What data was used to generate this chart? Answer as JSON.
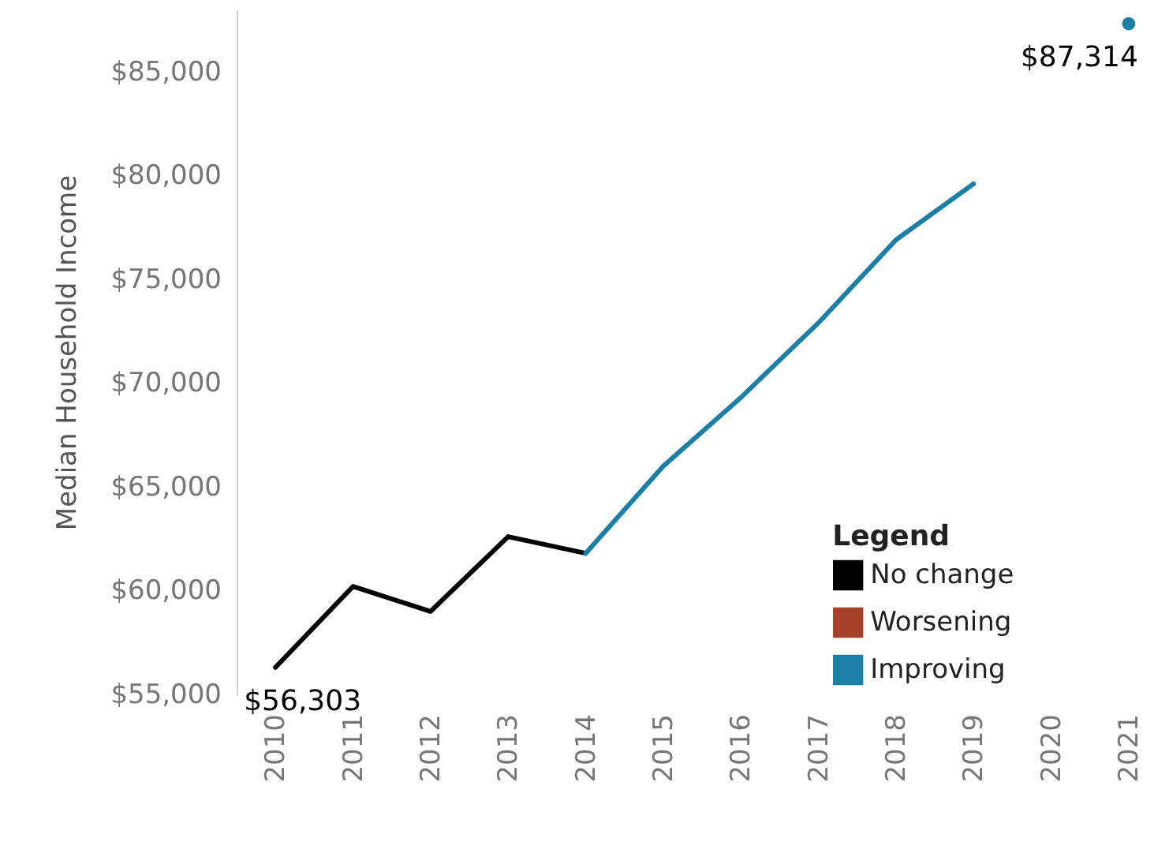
{
  "chart_data": {
    "type": "line",
    "ylabel": "Median Household Income",
    "legend_title": "Legend",
    "legend": "bottom right",
    "categories": [
      "2010",
      "2011",
      "2012",
      "2013",
      "2014",
      "2015",
      "2016",
      "2017",
      "2018",
      "2019",
      "2020",
      "2021"
    ],
    "series": [
      {
        "name": "No change",
        "color": "#000000",
        "values": [
          56303,
          60200,
          59000,
          62600,
          61800,
          null,
          null,
          null,
          null,
          null,
          null,
          null
        ],
        "value_labels": [
          "$56,303",
          null,
          null,
          null,
          null,
          null,
          null,
          null,
          null,
          null,
          null,
          null
        ]
      },
      {
        "name": "Worsening",
        "color": "#a8412b",
        "values": [
          null,
          null,
          null,
          null,
          null,
          null,
          null,
          null,
          null,
          null,
          null,
          null
        ]
      },
      {
        "name": "Improving",
        "color": "#1b7fa6",
        "values": [
          null,
          null,
          null,
          null,
          61800,
          66000,
          69300,
          72900,
          76900,
          79600,
          null,
          null
        ]
      },
      {
        "type": "scatter",
        "color": "#1b7fa6",
        "values": [
          null,
          null,
          null,
          null,
          null,
          null,
          null,
          null,
          null,
          null,
          null,
          87314
        ],
        "value_labels": [
          null,
          null,
          null,
          null,
          null,
          null,
          null,
          null,
          null,
          null,
          null,
          "$87,314"
        ]
      }
    ],
    "ylim": [
      55000,
      88000
    ],
    "yticks": [
      {
        "value": 55000,
        "label": "$55,000"
      },
      {
        "value": 60000,
        "label": "$60,000"
      },
      {
        "value": 65000,
        "label": "$65,000"
      },
      {
        "value": 70000,
        "label": "$70,000"
      },
      {
        "value": 75000,
        "label": "$75,000"
      },
      {
        "value": 80000,
        "label": "$80,000"
      },
      {
        "value": 85000,
        "label": "$85,000"
      }
    ],
    "grid": false
  }
}
